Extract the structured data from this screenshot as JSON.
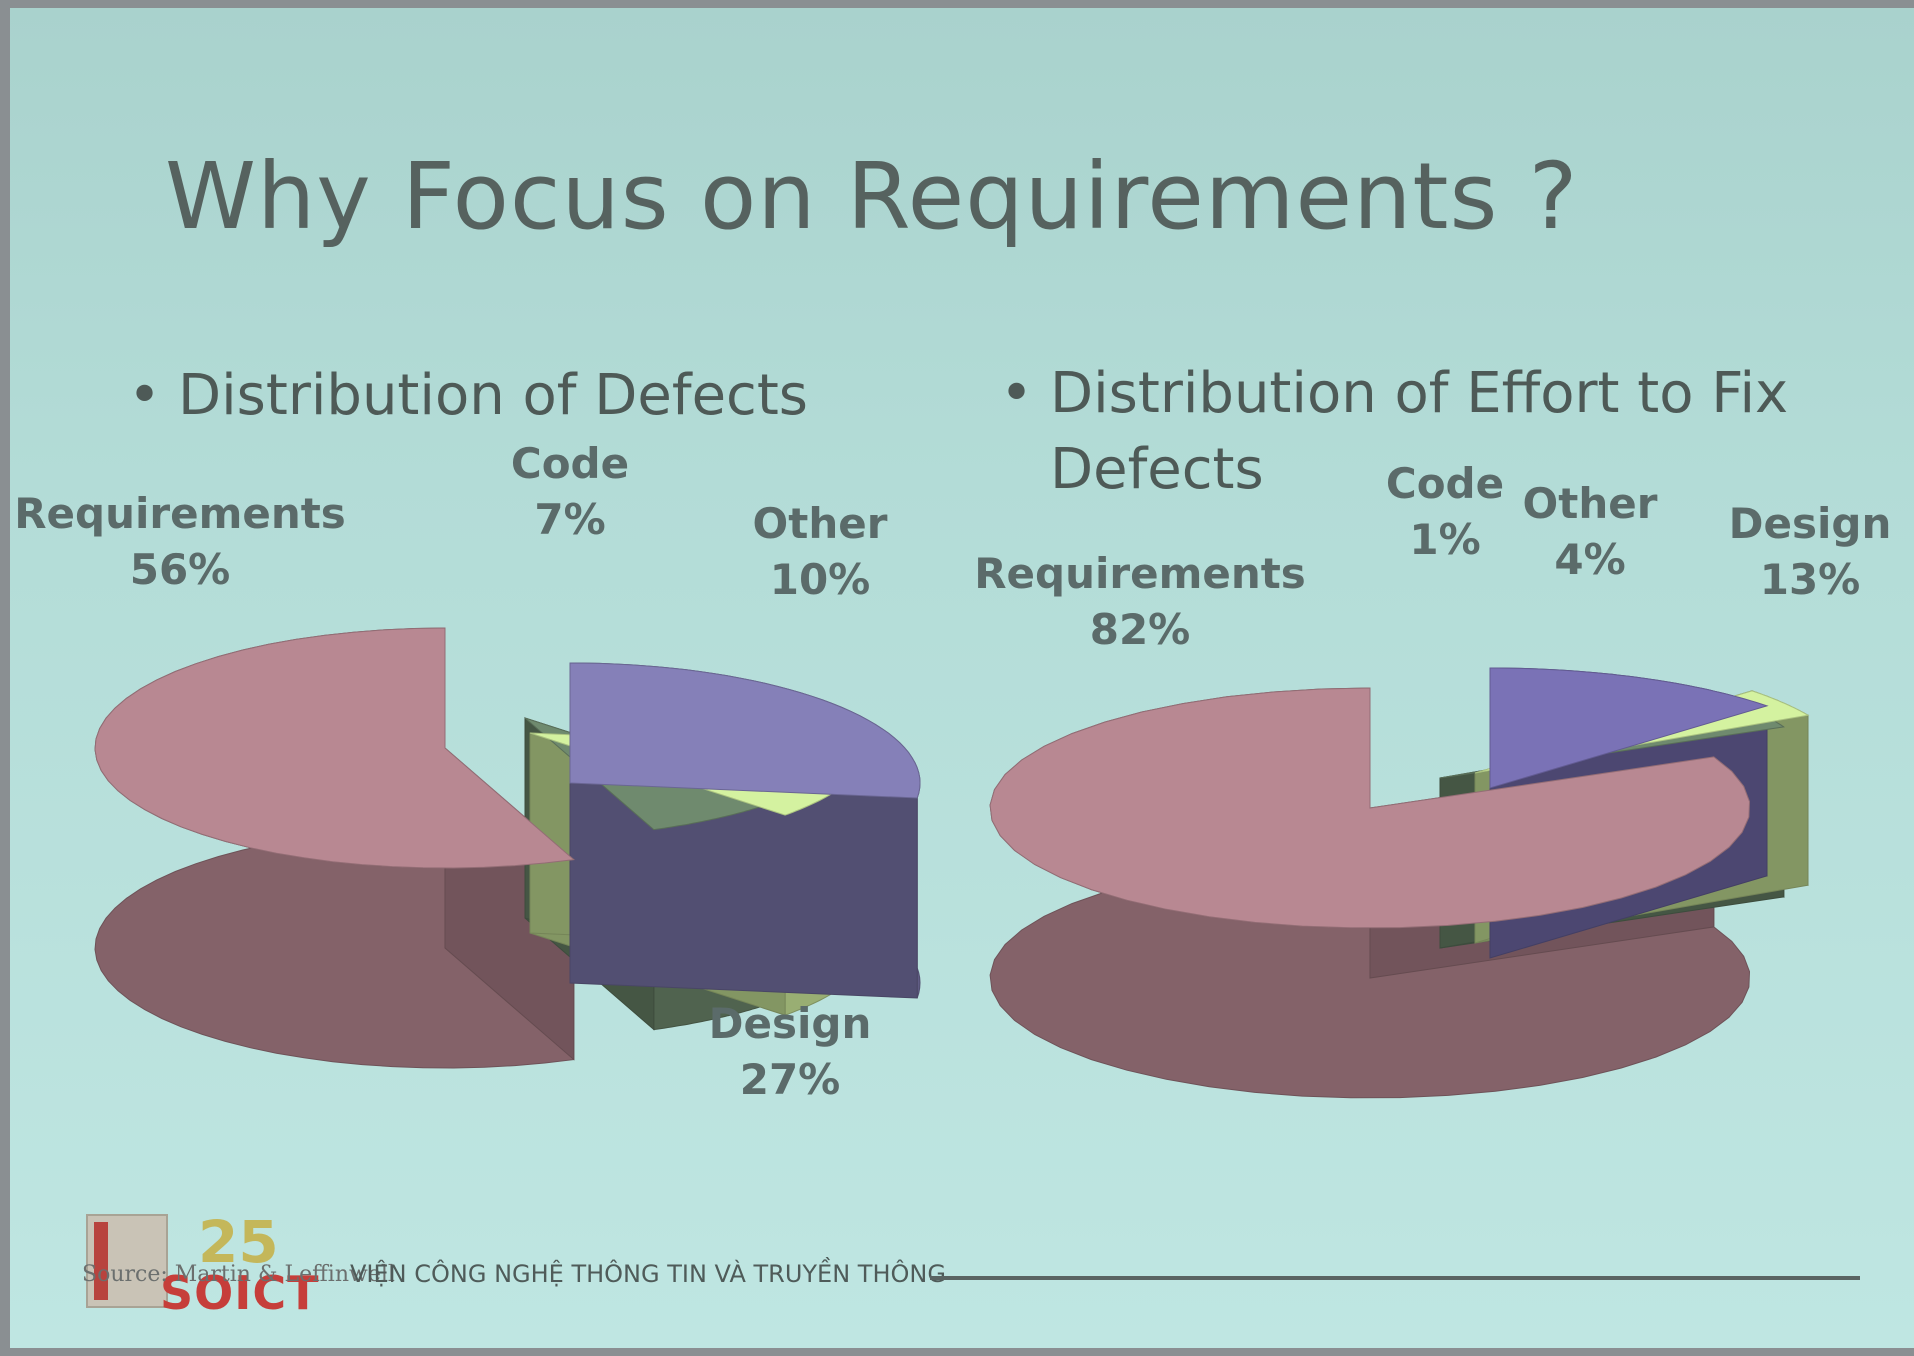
{
  "slide": {
    "title": "Why Focus on Requirements ?",
    "bullets": [
      {
        "symbol": "•",
        "text": "Distribution of Defects"
      },
      {
        "symbol": "•",
        "text": "Distribution of Effort to Fix Defects"
      }
    ]
  },
  "chart_data": [
    {
      "type": "pie",
      "variant": "3d-exploded",
      "slices": [
        {
          "label": "Requirements",
          "value": 56,
          "value_label": "56%",
          "color": "#b88892"
        },
        {
          "label": "Code",
          "value": 7,
          "value_label": "7%",
          "color": "#6f8a6e"
        },
        {
          "label": "Other",
          "value": 10,
          "value_label": "10%",
          "color": "#d4f2a0"
        },
        {
          "label": "Design",
          "value": 27,
          "value_label": "27%",
          "color": "#8580b8"
        }
      ]
    },
    {
      "type": "pie",
      "variant": "3d-exploded",
      "slices": [
        {
          "label": "Requirements",
          "value": 82,
          "value_label": "82%",
          "color": "#b88892"
        },
        {
          "label": "Code",
          "value": 1,
          "value_label": "1%",
          "color": "#6f8a6e"
        },
        {
          "label": "Other",
          "value": 4,
          "value_label": "4%",
          "color": "#d4f2a0"
        },
        {
          "label": "Design",
          "value": 13,
          "value_label": "13%",
          "color": "#7a72b6"
        }
      ]
    }
  ],
  "footer": {
    "source": "Source: Martin & Leffinwell",
    "institute": "VIỆN CÔNG NGHỆ THÔNG TIN VÀ TRUYỀN THÔNG",
    "logo_number": "25",
    "logo_text": "SOICT"
  }
}
